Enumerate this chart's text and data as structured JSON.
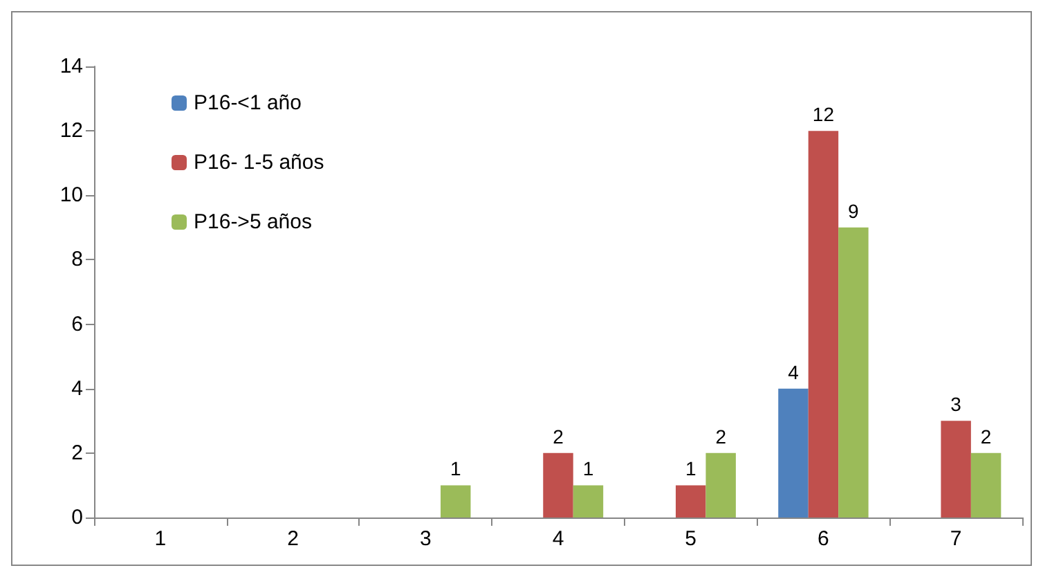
{
  "chart_data": {
    "type": "bar",
    "categories": [
      "1",
      "2",
      "3",
      "4",
      "5",
      "6",
      "7"
    ],
    "series": [
      {
        "name": "P16-<1 año",
        "color": "#4f81bd",
        "values": [
          0,
          0,
          0,
          0,
          0,
          4,
          0
        ],
        "value_labels": [
          null,
          null,
          null,
          null,
          null,
          "4",
          null
        ]
      },
      {
        "name": "P16- 1-5 años",
        "color": "#c0504d",
        "values": [
          0,
          0,
          0,
          2,
          1,
          12,
          3
        ],
        "value_labels": [
          null,
          null,
          null,
          "2",
          "1",
          "12",
          "3"
        ]
      },
      {
        "name": "P16->5 años",
        "color": "#9bbb59",
        "values": [
          0,
          0,
          1,
          1,
          2,
          9,
          2
        ],
        "value_labels": [
          null,
          null,
          "1",
          "1",
          "2",
          "9",
          "2"
        ]
      }
    ],
    "ylim": [
      0,
      14
    ],
    "yticks": [
      0,
      2,
      4,
      6,
      8,
      10,
      12,
      14
    ],
    "grid": false,
    "legend": "top left"
  }
}
